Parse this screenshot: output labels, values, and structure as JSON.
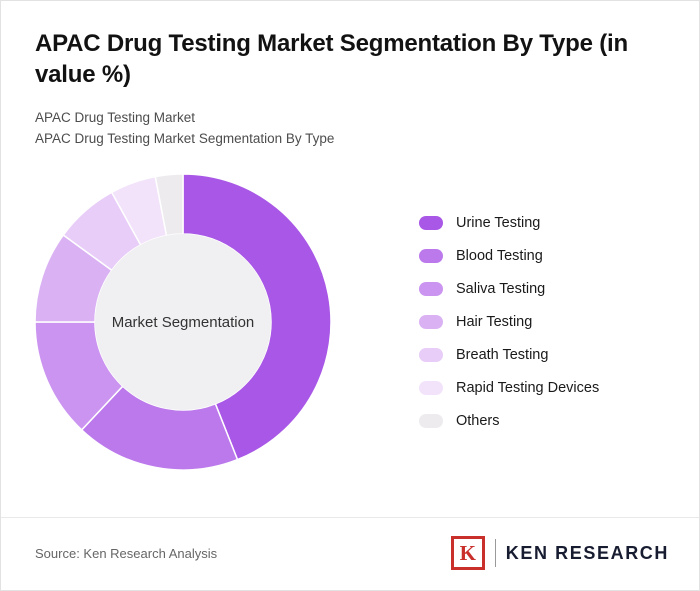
{
  "header": {
    "title": "APAC Drug Testing Market Segmentation By Type (in value %)",
    "subtitle1": "APAC Drug Testing Market",
    "subtitle2": "APAC Drug Testing Market Segmentation By Type"
  },
  "chart_data": {
    "type": "pie",
    "variant": "donut",
    "title": "APAC Drug Testing Market Segmentation By Type (in value %)",
    "center_label": "Market Segmentation",
    "start_angle_deg": 0,
    "direction": "clockwise",
    "legend_position": "right",
    "categories": [
      "Urine Testing",
      "Blood Testing",
      "Saliva Testing",
      "Hair Testing",
      "Breath Testing",
      "Rapid Testing Devices",
      "Others"
    ],
    "values": [
      44,
      18,
      13,
      10,
      7,
      5,
      3
    ],
    "colors": [
      "#A857E6",
      "#BB79EC",
      "#CB94F0",
      "#DAB2F4",
      "#E8CDF8",
      "#F2E3FB",
      "#EDEBEE"
    ],
    "center_fill": "#F0EFF1"
  },
  "footer": {
    "source": "Source: Ken Research Analysis",
    "logo_k": "K",
    "logo_text": "KEN RESEARCH"
  }
}
